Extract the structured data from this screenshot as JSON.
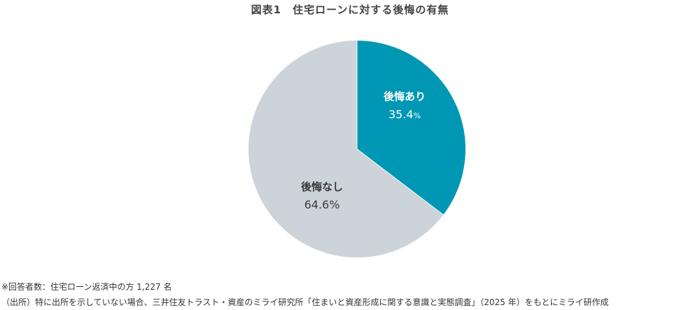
{
  "title": "図表1　住宅ローンに対する後悔の有無",
  "colors": {
    "regret_yes": "#0097b5",
    "regret_no": "#ccd3d9",
    "label_yes": "#ffffff",
    "label_no": "#3a3a3a"
  },
  "slices": [
    {
      "label": "後悔あり",
      "value_text": "35.4",
      "unit": "%"
    },
    {
      "label": "後悔なし",
      "value_text": "64.6%"
    }
  ],
  "notes": {
    "respondents": "※回答者数：住宅ローン返済中の方 1,227 名",
    "source": "（出所）特に出所を示していない場合、三井住友トラスト・資産のミライ研究所「住まいと資産形成に関する意識と実態調査」（2025 年）をもとにミライ研作成"
  },
  "chart_data": {
    "type": "pie",
    "title": "図表1　住宅ローンに対する後悔の有無",
    "categories": [
      "後悔あり",
      "後悔なし"
    ],
    "values": [
      35.4,
      64.6
    ],
    "unit": "%",
    "start_angle": "12 o'clock, clockwise",
    "legend": "none (inline labels)"
  }
}
